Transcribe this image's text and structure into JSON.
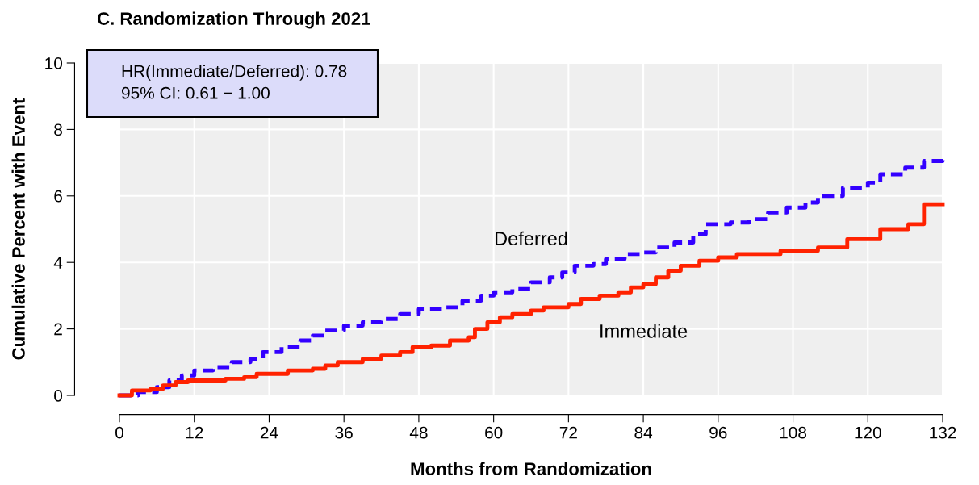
{
  "chart_data": {
    "type": "step",
    "title": "C. Randomization Through 2021",
    "xlabel": "Months from Randomization",
    "ylabel": "Cumulative Percent with Event",
    "xlim": [
      0,
      132
    ],
    "ylim": [
      0,
      10
    ],
    "xticks": [
      0,
      12,
      24,
      36,
      48,
      60,
      72,
      84,
      96,
      108,
      120,
      132
    ],
    "yticks": [
      0,
      2,
      4,
      6,
      8,
      10
    ],
    "grid": true,
    "legend": false,
    "annotations": [
      "HR(Immediate/Deferred): 0.78",
      "95% CI: 0.61 − 1.00"
    ],
    "series": [
      {
        "name": "Deferred",
        "color": "#3300ff",
        "line_style": "dashed",
        "x": [
          0,
          3,
          6,
          8,
          10,
          12,
          15,
          18,
          21,
          23,
          26,
          29,
          31,
          33,
          36,
          39,
          42,
          45,
          48,
          52,
          55,
          58,
          60,
          63,
          66,
          69,
          71,
          73,
          76,
          78,
          81,
          84,
          86,
          89,
          92,
          94,
          98,
          101,
          104,
          107,
          110,
          112,
          116,
          120,
          122,
          126,
          129,
          132
        ],
        "values": [
          0,
          0.1,
          0.25,
          0.45,
          0.6,
          0.75,
          0.85,
          1.0,
          1.1,
          1.3,
          1.45,
          1.65,
          1.8,
          1.95,
          2.1,
          2.2,
          2.3,
          2.45,
          2.6,
          2.65,
          2.85,
          3.0,
          3.1,
          3.2,
          3.4,
          3.55,
          3.7,
          3.9,
          3.95,
          4.1,
          4.25,
          4.3,
          4.45,
          4.6,
          4.85,
          5.15,
          5.2,
          5.3,
          5.5,
          5.65,
          5.8,
          6.0,
          6.25,
          6.4,
          6.65,
          6.85,
          7.05,
          7.08
        ]
      },
      {
        "name": "Immediate",
        "color": "#ff2200",
        "line_style": "solid",
        "x": [
          0,
          2,
          5,
          7,
          9,
          11,
          17,
          20,
          22,
          27,
          31,
          33,
          35,
          39,
          42,
          45,
          47,
          50,
          53,
          56,
          57,
          59,
          61,
          63,
          66,
          68,
          72,
          74,
          77,
          80,
          82,
          84,
          86,
          88,
          90,
          93,
          96,
          99,
          106,
          112,
          116.7,
          122,
          126.5,
          129,
          132
        ],
        "values": [
          0,
          0.15,
          0.2,
          0.3,
          0.4,
          0.45,
          0.5,
          0.55,
          0.65,
          0.75,
          0.8,
          0.9,
          1.0,
          1.1,
          1.2,
          1.3,
          1.45,
          1.5,
          1.65,
          1.75,
          2.0,
          2.2,
          2.35,
          2.45,
          2.55,
          2.65,
          2.75,
          2.9,
          3.0,
          3.1,
          3.25,
          3.35,
          3.55,
          3.75,
          3.9,
          4.05,
          4.15,
          4.25,
          4.35,
          4.45,
          4.7,
          5.0,
          5.15,
          5.75,
          5.75
        ]
      }
    ]
  }
}
